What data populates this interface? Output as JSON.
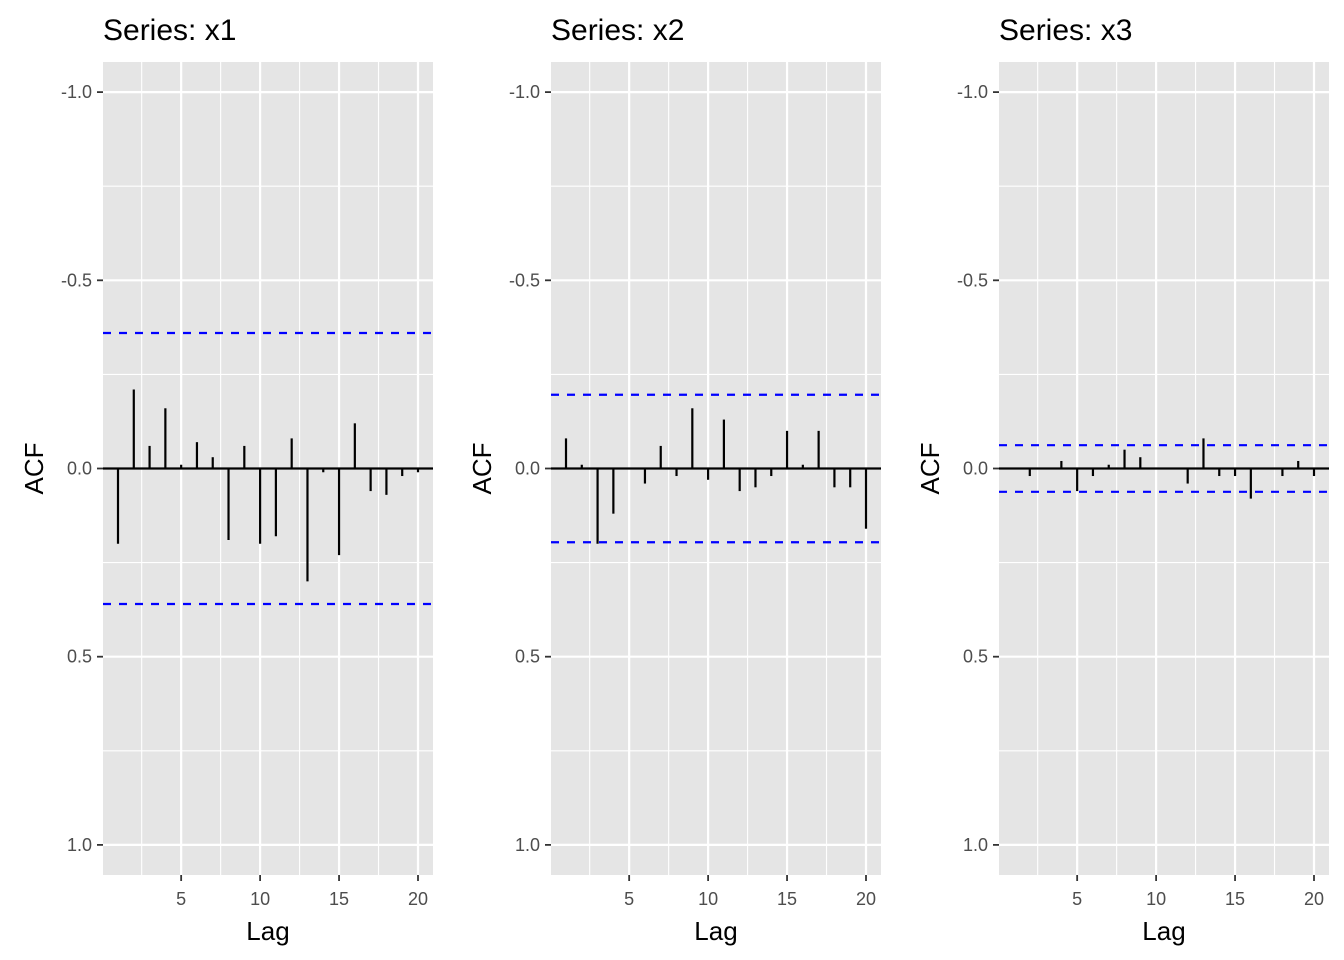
{
  "colors": {
    "panel_background": "#e5e5e5",
    "grid_major": "#ffffff",
    "bar": "#000000",
    "confidence_band": "#0000ff",
    "tick_text": "#4d4d4d"
  },
  "chart_data": [
    {
      "type": "bar",
      "title": "Series: x1",
      "xlabel": "Lag",
      "ylabel": "ACF",
      "x_ticks": [
        5,
        10,
        15,
        20
      ],
      "y_ticks": [
        "-1.0",
        "-0.5",
        "0.0",
        "0.5",
        "1.0"
      ],
      "y_reversed": true,
      "ylim": [
        -1.08,
        1.08
      ],
      "xlim": [
        0.05,
        20.95
      ],
      "grid": true,
      "confidence_limit": 0.36,
      "x": [
        1,
        2,
        3,
        4,
        5,
        6,
        7,
        8,
        9,
        10,
        11,
        12,
        13,
        14,
        15,
        16,
        17,
        18,
        19,
        20
      ],
      "values": [
        0.2,
        -0.21,
        -0.06,
        -0.16,
        -0.01,
        -0.07,
        -0.03,
        0.19,
        -0.06,
        0.2,
        0.18,
        -0.08,
        0.3,
        0.01,
        0.23,
        -0.12,
        0.06,
        0.07,
        0.02,
        0.01
      ]
    },
    {
      "type": "bar",
      "title": "Series: x2",
      "xlabel": "Lag",
      "ylabel": "ACF",
      "x_ticks": [
        5,
        10,
        15,
        20
      ],
      "y_ticks": [
        "-1.0",
        "-0.5",
        "0.0",
        "0.5",
        "1.0"
      ],
      "y_reversed": true,
      "ylim": [
        -1.08,
        1.08
      ],
      "xlim": [
        0.05,
        20.95
      ],
      "grid": true,
      "confidence_limit": 0.196,
      "x": [
        1,
        2,
        3,
        4,
        5,
        6,
        7,
        8,
        9,
        10,
        11,
        12,
        13,
        14,
        15,
        16,
        17,
        18,
        19,
        20
      ],
      "values": [
        -0.08,
        -0.01,
        0.2,
        0.12,
        0.0,
        0.04,
        -0.06,
        0.02,
        -0.16,
        0.03,
        -0.13,
        0.06,
        0.05,
        0.02,
        -0.1,
        -0.01,
        -0.1,
        0.05,
        0.05,
        0.16
      ]
    },
    {
      "type": "bar",
      "title": "Series: x3",
      "xlabel": "Lag",
      "ylabel": "ACF",
      "x_ticks": [
        5,
        10,
        15,
        20
      ],
      "y_ticks": [
        "-1.0",
        "-0.5",
        "0.0",
        "0.5",
        "1.0"
      ],
      "y_reversed": true,
      "ylim": [
        -1.08,
        1.08
      ],
      "xlim": [
        0.05,
        20.95
      ],
      "grid": true,
      "confidence_limit": 0.062,
      "x": [
        1,
        2,
        3,
        4,
        5,
        6,
        7,
        8,
        9,
        10,
        11,
        12,
        13,
        14,
        15,
        16,
        17,
        18,
        19,
        20
      ],
      "values": [
        0.0,
        0.02,
        0.0,
        -0.02,
        0.06,
        0.02,
        -0.01,
        -0.05,
        -0.03,
        0.0,
        0.0,
        0.04,
        -0.08,
        0.02,
        0.02,
        0.08,
        0.0,
        0.02,
        -0.02,
        0.02
      ]
    }
  ]
}
